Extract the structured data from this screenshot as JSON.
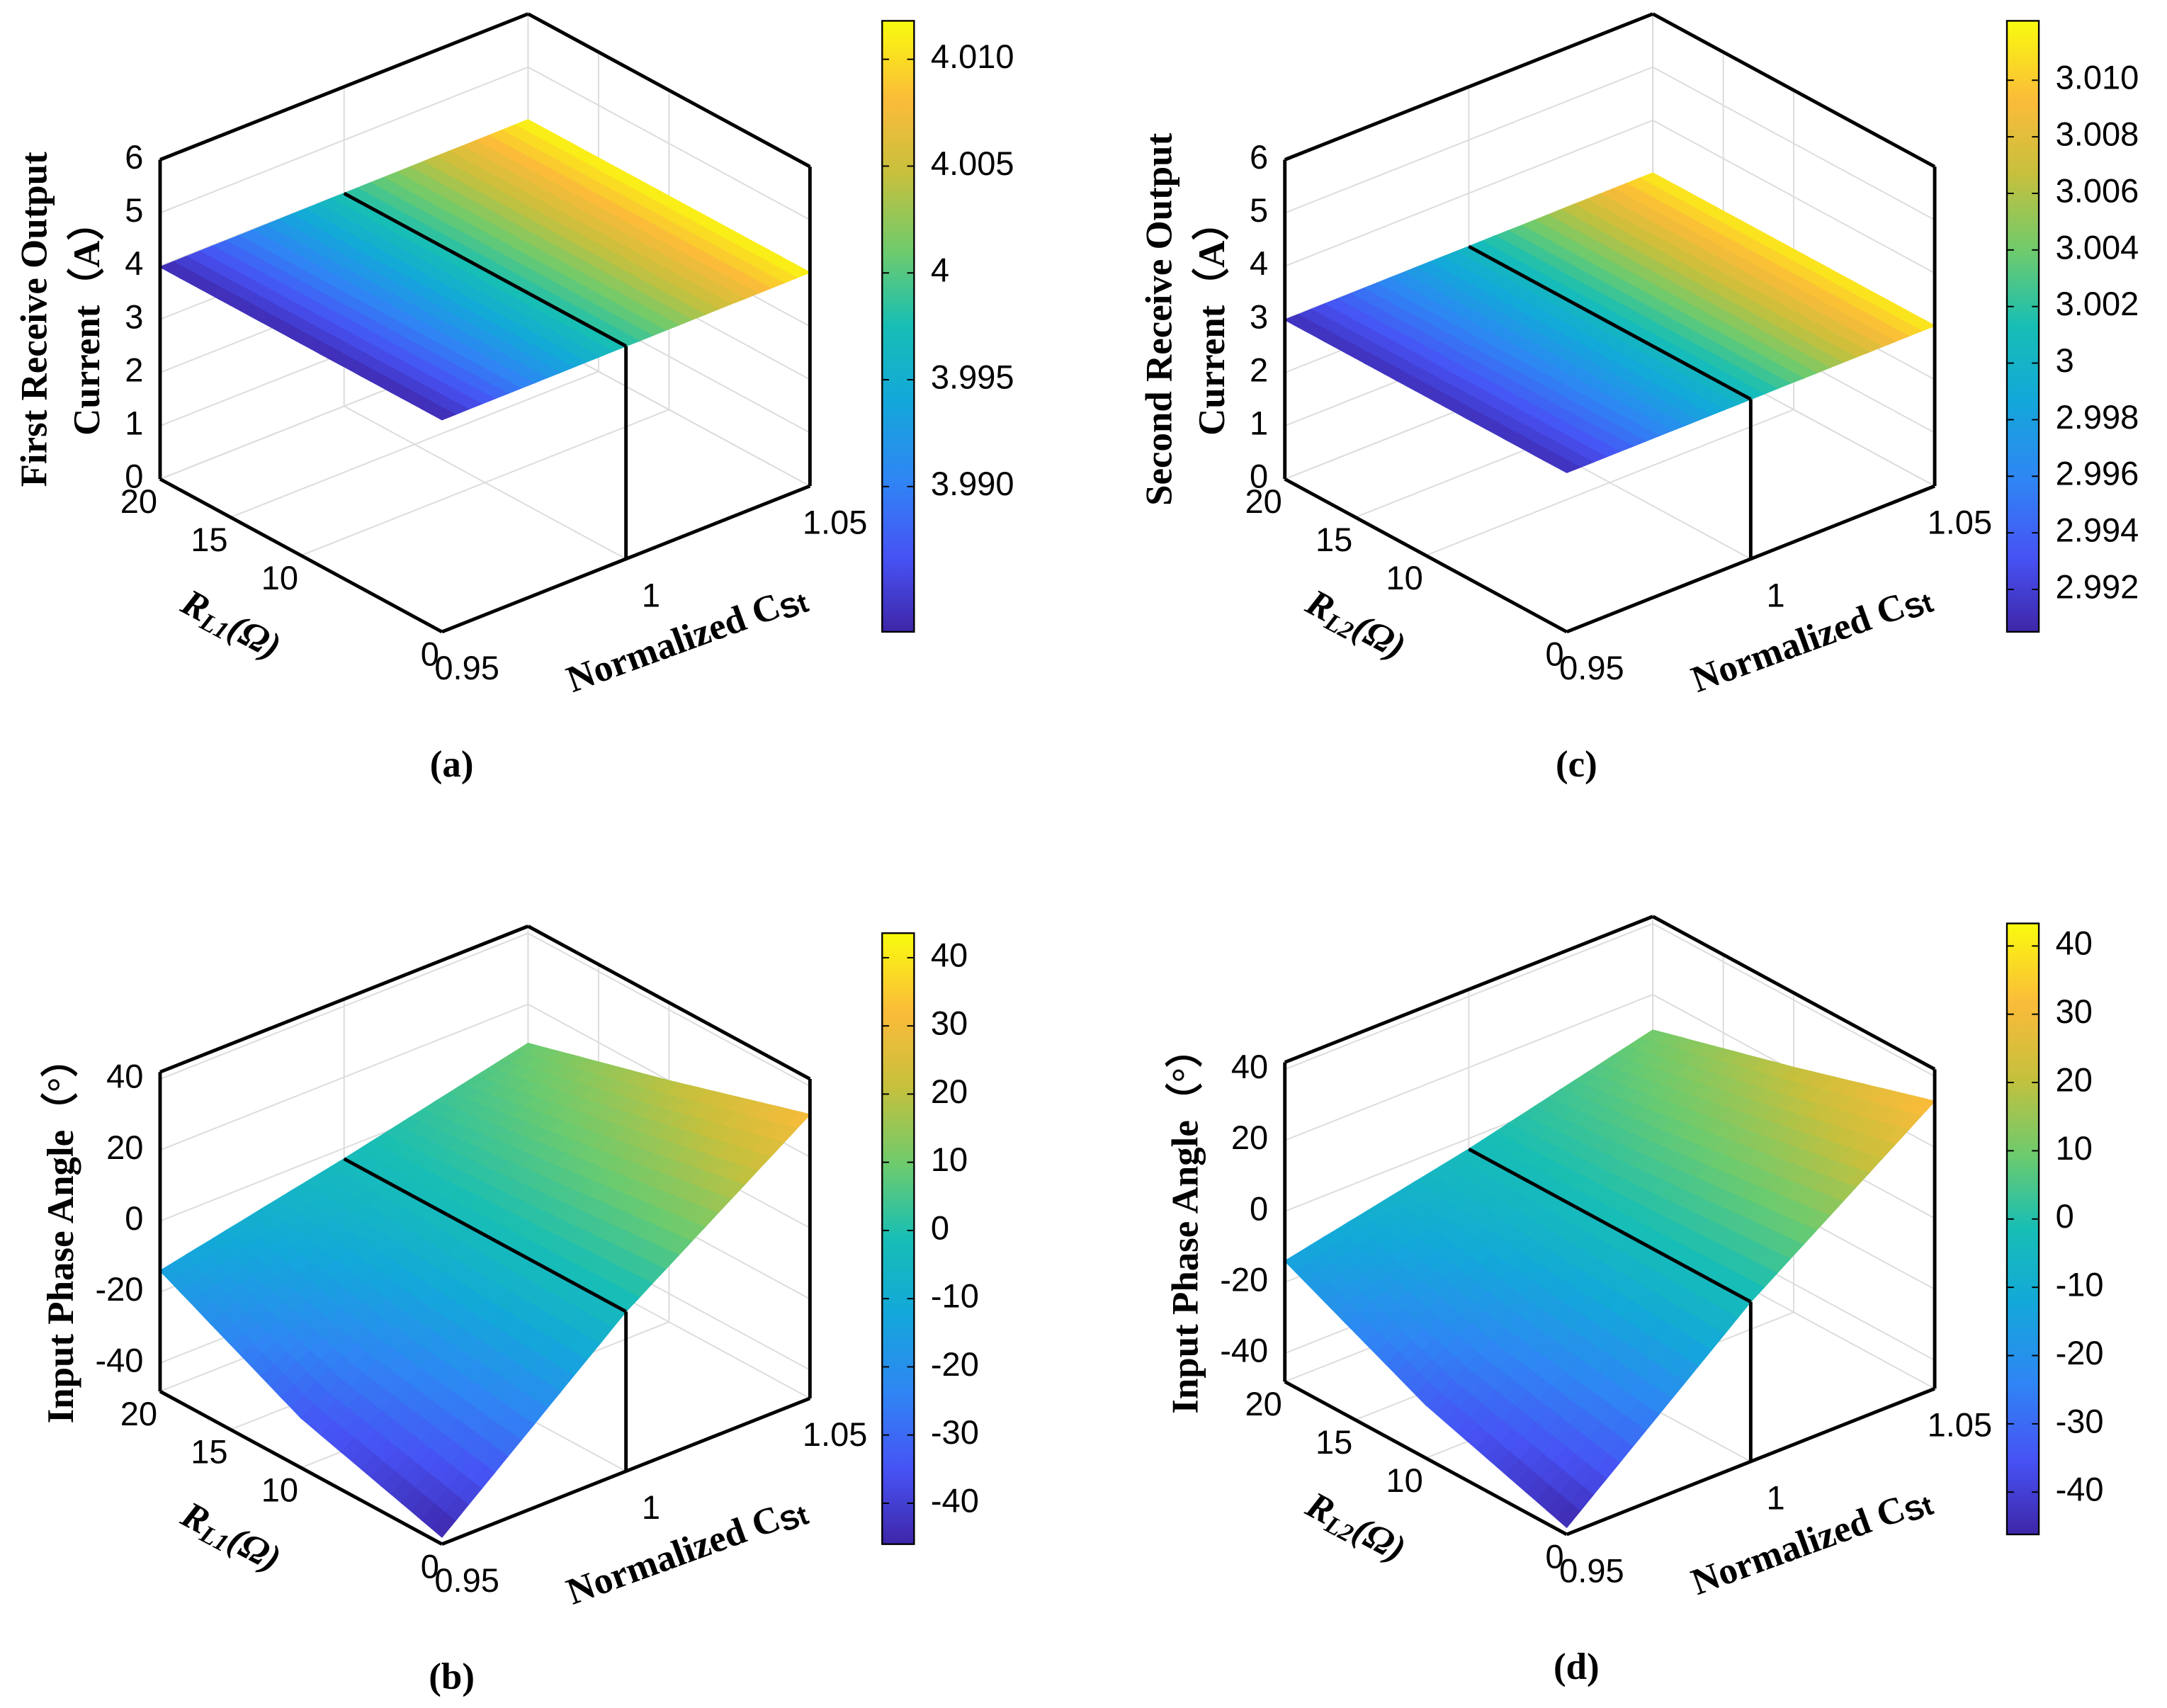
{
  "chart_data": [
    {
      "type": "surface",
      "label": "(a)",
      "zlabel": [
        "First Receive Output",
        "Current（A）"
      ],
      "ylabel": {
        "symbol": "R",
        "subscript": "L1",
        "unit": "(Ω)"
      },
      "xlabel": {
        "text": "Normalized C",
        "subscript": "St"
      },
      "xlim": [
        0.95,
        1.05
      ],
      "xticks": [
        0.95,
        1,
        1.05
      ],
      "ylim": [
        0,
        20
      ],
      "yticks": [
        0,
        10,
        15,
        20
      ],
      "zlim": [
        0,
        6
      ],
      "zticks": [
        0,
        1,
        2,
        3,
        4,
        5,
        6
      ],
      "clim": [
        3.9832,
        4.0118
      ],
      "cticks": [
        {
          "value": 3.99,
          "label": "3.990"
        },
        3.995,
        4,
        4.005,
        {
          "value": 4.01,
          "label": "4.010"
        }
      ],
      "grid": true,
      "colormap": "parula",
      "surface": {
        "x": [
          0.95,
          1,
          1.05
        ],
        "y": [
          0,
          10,
          20
        ],
        "z": [
          [
            3.9835,
            3.998,
            4.0115
          ],
          [
            3.9835,
            3.998,
            4.0115
          ],
          [
            3.9835,
            3.998,
            4.0115
          ]
        ]
      }
    },
    {
      "type": "surface",
      "label": "(b)",
      "zlabel": [
        "Input Phase Angle（°）"
      ],
      "ylabel": {
        "symbol": "R",
        "subscript": "L1",
        "unit": "(Ω)"
      },
      "xlabel": {
        "text": "Normalized C",
        "subscript": "St"
      },
      "xlim": [
        0.95,
        1.05
      ],
      "xticks": [
        0.95,
        1,
        1.05
      ],
      "ylim": [
        0,
        20
      ],
      "yticks": [
        0,
        10,
        15,
        20
      ],
      "zlim": [
        -48,
        42
      ],
      "zticks": [
        -40,
        -20,
        0,
        20,
        40
      ],
      "clim": [
        -46,
        43.6
      ],
      "cticks": [
        -40,
        -30,
        -20,
        -10,
        0,
        10,
        20,
        30,
        40
      ],
      "grid": true,
      "colormap": "parula",
      "surface": {
        "x": [
          0.95,
          1,
          1.05
        ],
        "y": [
          0,
          10,
          20
        ],
        "z": [
          [
            -46,
            -3,
            32
          ],
          [
            -34,
            -3,
            20
          ],
          [
            -14,
            -3,
            9
          ]
        ]
      }
    },
    {
      "type": "surface",
      "label": "(c)",
      "zlabel": [
        "Second Receive Output",
        "Current（A）"
      ],
      "ylabel": {
        "symbol": "R",
        "subscript": "L2",
        "unit": "(Ω)"
      },
      "xlabel": {
        "text": "Normalized C",
        "subscript": "St"
      },
      "xlim": [
        0.95,
        1.05
      ],
      "xticks": [
        0.95,
        1,
        1.05
      ],
      "ylim": [
        0,
        20
      ],
      "yticks": [
        0,
        10,
        15,
        20
      ],
      "zlim": [
        0,
        6
      ],
      "zticks": [
        0,
        1,
        2,
        3,
        4,
        5,
        6
      ],
      "clim": [
        2.9905,
        3.0121
      ],
      "cticks": [
        {
          "value": 2.992,
          "label": "2.992"
        },
        2.994,
        2.996,
        2.998,
        3,
        3.002,
        3.004,
        3.006,
        3.008,
        {
          "value": 3.01,
          "label": "3.010"
        }
      ],
      "grid": true,
      "colormap": "parula",
      "surface": {
        "x": [
          0.95,
          1,
          1.05
        ],
        "y": [
          0,
          10,
          20
        ],
        "z": [
          [
            2.991,
            3.0005,
            3.0115
          ],
          [
            2.991,
            3.0005,
            3.0115
          ],
          [
            2.991,
            3.0005,
            3.0115
          ]
        ]
      }
    },
    {
      "type": "surface",
      "label": "(d)",
      "zlabel": [
        "Input Phase Angle（°）"
      ],
      "ylabel": {
        "symbol": "R",
        "subscript": "L2",
        "unit": "(Ω)"
      },
      "xlabel": {
        "text": "Normalized C",
        "subscript": "St"
      },
      "xlim": [
        0.95,
        1.05
      ],
      "xticks": [
        0.95,
        1,
        1.05
      ],
      "ylim": [
        0,
        20
      ],
      "yticks": [
        0,
        10,
        15,
        20
      ],
      "zlim": [
        -48,
        42
      ],
      "zticks": [
        -40,
        -20,
        0,
        20,
        40
      ],
      "clim": [
        -46.2,
        43.3
      ],
      "cticks": [
        -40,
        -30,
        -20,
        -10,
        0,
        10,
        20,
        30,
        40
      ],
      "grid": true,
      "colormap": "parula",
      "surface": {
        "x": [
          0.95,
          1,
          1.05
        ],
        "y": [
          0,
          10,
          20
        ],
        "z": [
          [
            -46,
            -3,
            33
          ],
          [
            -33,
            -3,
            21
          ],
          [
            -14,
            -3,
            10
          ]
        ]
      }
    }
  ]
}
